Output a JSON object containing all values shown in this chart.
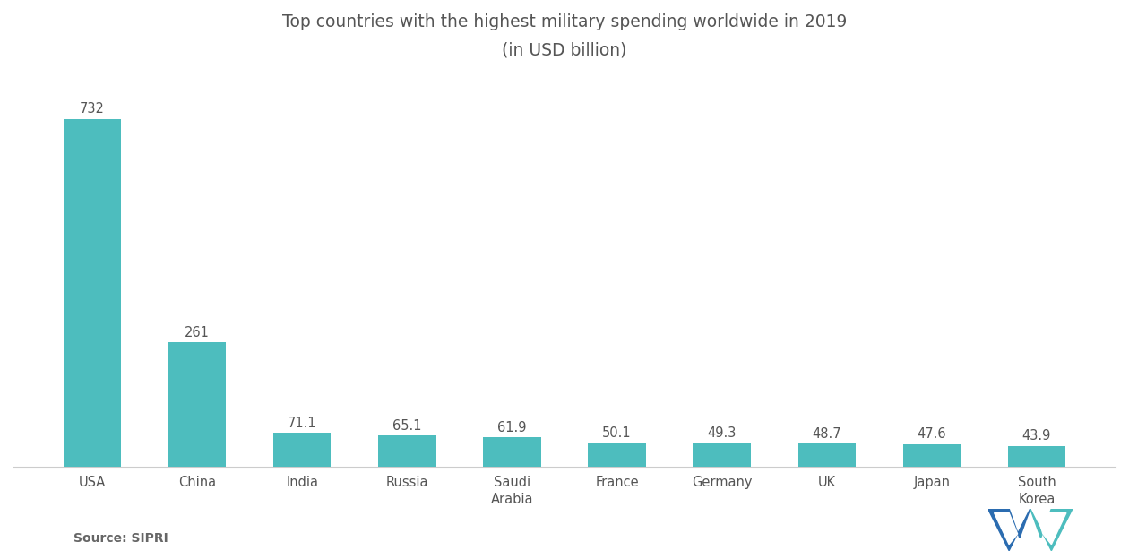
{
  "categories": [
    "USA",
    "China",
    "India",
    "Russia",
    "Saudi\nArabia",
    "France",
    "Germany",
    "UK",
    "Japan",
    "South\nKorea"
  ],
  "values": [
    732,
    261,
    71.1,
    65.1,
    61.9,
    50.1,
    49.3,
    48.7,
    47.6,
    43.9
  ],
  "bar_color": "#4dbdbe",
  "title_line1": "Top countries with the highest military spending worldwide in 2019",
  "title_line2": "(in USD billion)",
  "source_text": "Source: SIPRI",
  "ylim": [
    0,
    820
  ],
  "title_fontsize": 13.5,
  "label_fontsize": 10.5,
  "bar_label_fontsize": 10.5,
  "source_fontsize": 10,
  "background_color": "#ffffff",
  "text_color": "#555555"
}
